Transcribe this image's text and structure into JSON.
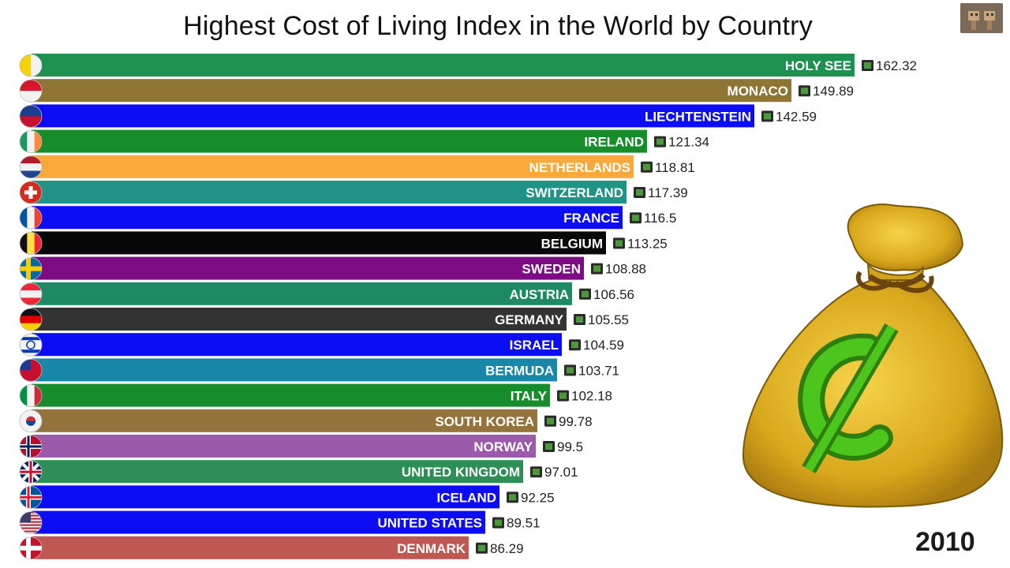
{
  "title": "Highest Cost of Living Index in the World by Country",
  "year": "2010",
  "currency_icon": "money-bag-icon",
  "chart_data": {
    "type": "bar",
    "orientation": "horizontal",
    "title": "Highest Cost of Living Index in the World by Country",
    "categories": [
      "HOLY SEE",
      "MONACO",
      "LIECHTENSTEIN",
      "IRELAND",
      "NETHERLANDS",
      "SWITZERLAND",
      "FRANCE",
      "BELGIUM",
      "SWEDEN",
      "AUSTRIA",
      "GERMANY",
      "ISRAEL",
      "BERMUDA",
      "ITALY",
      "SOUTH KOREA",
      "NORWAY",
      "UNITED KINGDOM",
      "ICELAND",
      "UNITED STATES",
      "DENMARK"
    ],
    "values": [
      162.32,
      149.89,
      142.59,
      121.34,
      118.81,
      117.39,
      116.5,
      113.25,
      108.88,
      106.56,
      105.55,
      104.59,
      103.71,
      102.18,
      99.78,
      99.5,
      97.01,
      92.25,
      89.51,
      86.29
    ],
    "value_labels": [
      "162.32",
      "149.89",
      "142.59",
      "121.34",
      "118.81",
      "117.39",
      "116.5",
      "113.25",
      "108.88",
      "106.56",
      "105.55",
      "104.59",
      "103.71",
      "102.18",
      "99.78",
      "99.5",
      "97.01",
      "92.25",
      "89.51",
      "86.29"
    ],
    "colors": [
      "#1e9150",
      "#8f7635",
      "#0c0cf5",
      "#178c2b",
      "#f9a83a",
      "#1e9386",
      "#0c0cf5",
      "#080808",
      "#7d0b83",
      "#1e8a64",
      "#333333",
      "#0c0cf5",
      "#1987a8",
      "#178c2b",
      "#94733d",
      "#9b5aaa",
      "#2d8f56",
      "#0c0cf5",
      "#0c0cf5",
      "#bf5752"
    ],
    "flags": [
      "vatican-flag-icon",
      "monaco-flag-icon",
      "liechtenstein-flag-icon",
      "ireland-flag-icon",
      "netherlands-flag-icon",
      "switzerland-flag-icon",
      "france-flag-icon",
      "belgium-flag-icon",
      "sweden-flag-icon",
      "austria-flag-icon",
      "germany-flag-icon",
      "israel-flag-icon",
      "bermuda-flag-icon",
      "italy-flag-icon",
      "south-korea-flag-icon",
      "norway-flag-icon",
      "uk-flag-icon",
      "iceland-flag-icon",
      "usa-flag-icon",
      "denmark-flag-icon"
    ],
    "xlim": [
      0,
      162.32
    ],
    "grid": false,
    "legend": "none"
  }
}
